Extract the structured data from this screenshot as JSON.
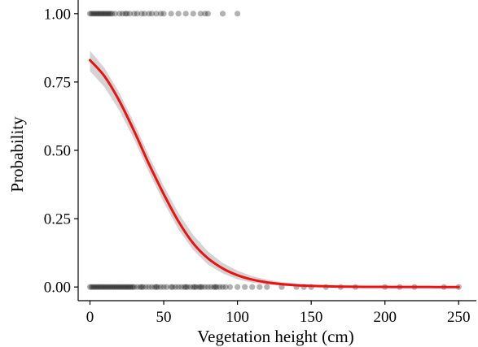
{
  "chart_data": {
    "type": "scatter",
    "title": "",
    "xlabel": "Vegetation height (cm)",
    "ylabel": "Probability",
    "xlim": [
      -8,
      262
    ],
    "ylim": [
      -0.05,
      1.05
    ],
    "x_ticks": [
      0,
      50,
      100,
      150,
      200,
      250
    ],
    "x_tick_labels": [
      "0",
      "50",
      "100",
      "150",
      "200",
      "250"
    ],
    "y_ticks": [
      0,
      0.25,
      0.5,
      0.75,
      1.0
    ],
    "y_tick_labels": [
      "0.00",
      "0.25",
      "0.50",
      "0.75",
      "1.00"
    ],
    "grid": false,
    "legend": "none",
    "point_color": "#000000",
    "point_opacity": 0.3,
    "curve_color": "#ee1111",
    "ribbon_color": "#d3d3d3",
    "points_y1": [
      0,
      1,
      2,
      3,
      4,
      5,
      6,
      7,
      8,
      9,
      10,
      11,
      12,
      13,
      14,
      15,
      17,
      20,
      22,
      24,
      25,
      27,
      30,
      32,
      35,
      37,
      40,
      42,
      45,
      48,
      50,
      55,
      60,
      65,
      70,
      75,
      78,
      80,
      90,
      100
    ],
    "points_y0": [
      0,
      1,
      2,
      3,
      4,
      5,
      6,
      7,
      8,
      9,
      10,
      11,
      12,
      13,
      14,
      15,
      16,
      17,
      18,
      19,
      20,
      21,
      22,
      23,
      24,
      25,
      26,
      27,
      28,
      29,
      30,
      32,
      34,
      35,
      36,
      38,
      40,
      42,
      44,
      45,
      46,
      48,
      50,
      52,
      55,
      56,
      58,
      60,
      62,
      64,
      65,
      66,
      68,
      70,
      71,
      72,
      74,
      75,
      76,
      78,
      80,
      82,
      84,
      85,
      86,
      88,
      90,
      92,
      95,
      100,
      105,
      110,
      115,
      120,
      130,
      140,
      145,
      150,
      160,
      170,
      180,
      200,
      210,
      220,
      240,
      250
    ],
    "curve": {
      "x": [
        0,
        10,
        20,
        30,
        40,
        50,
        60,
        70,
        80,
        90,
        100,
        110,
        120,
        130,
        140,
        150,
        160,
        170,
        180,
        190,
        200,
        210,
        220,
        230,
        240,
        250
      ],
      "y": [
        0.83,
        0.77,
        0.68,
        0.57,
        0.45,
        0.34,
        0.24,
        0.16,
        0.105,
        0.068,
        0.043,
        0.027,
        0.017,
        0.0105,
        0.0065,
        0.004,
        0.0025,
        0.0015,
        0.0009,
        0.0006,
        0.0004,
        0.0002,
        0.0001,
        0.0001,
        0.0,
        0.0
      ]
    },
    "ci_upper": [
      0.865,
      0.8,
      0.71,
      0.6,
      0.48,
      0.37,
      0.27,
      0.19,
      0.13,
      0.088,
      0.06,
      0.04,
      0.027,
      0.018,
      0.012,
      0.008,
      0.005,
      0.0035,
      0.0025,
      0.0015,
      0.001,
      0.0008,
      0.0006,
      0.0004,
      0.0003,
      0.0002
    ],
    "ci_lower": [
      0.79,
      0.73,
      0.645,
      0.54,
      0.42,
      0.31,
      0.21,
      0.135,
      0.082,
      0.05,
      0.028,
      0.016,
      0.009,
      0.005,
      0.0025,
      0.0012,
      0.0006,
      0.0003,
      0.0002,
      0.0001,
      0.0,
      0.0,
      0.0,
      0.0,
      0.0,
      0.0
    ]
  }
}
